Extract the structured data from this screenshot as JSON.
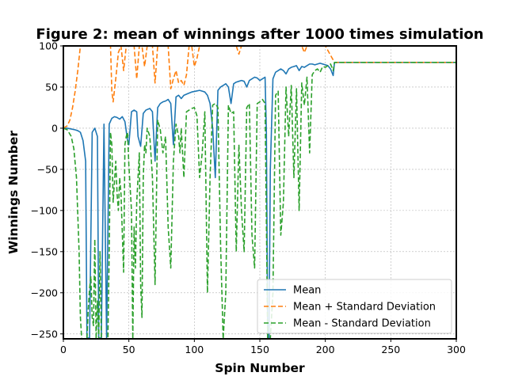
{
  "chart_data": {
    "type": "line",
    "title": "Figure 2: mean of winnings after 1000 times simulation",
    "xlabel": "Spin Number",
    "ylabel": "Winnings Number",
    "xlim": [
      0,
      300
    ],
    "ylim": [
      -256,
      100
    ],
    "xticks": [
      0,
      50,
      100,
      150,
      200,
      250,
      300
    ],
    "yticks": [
      100,
      50,
      0,
      -50,
      -100,
      -150,
      -200,
      -250
    ],
    "ytick_labels": [
      "100",
      "50",
      "0",
      "−50",
      "−100",
      "−150",
      "−200",
      "−250"
    ],
    "grid": true,
    "legend_position": "lower-right",
    "series": [
      {
        "name": "Mean",
        "color": "#1f77b4",
        "dash": "solid",
        "x": [
          0,
          3,
          6,
          9,
          11,
          13,
          15,
          17,
          18,
          20,
          22,
          24,
          26,
          27,
          29,
          31,
          33,
          35,
          37,
          39,
          41,
          43,
          45,
          47,
          49,
          50,
          52,
          54,
          56,
          57,
          59,
          61,
          63,
          66,
          68,
          70,
          72,
          74,
          76,
          78,
          80,
          82,
          84,
          86,
          88,
          90,
          92,
          95,
          98,
          101,
          104,
          106,
          108,
          110,
          112,
          114,
          116,
          118,
          120,
          122,
          124,
          126,
          128,
          130,
          132,
          134,
          136,
          138,
          140,
          142,
          144,
          146,
          148,
          150,
          152,
          154,
          155,
          156,
          157,
          158,
          160,
          162,
          164,
          166,
          168,
          170,
          172,
          174,
          176,
          178,
          180,
          182,
          184,
          186,
          188,
          190,
          192,
          194,
          196,
          198,
          200,
          202,
          204,
          205,
          206,
          207,
          210,
          220,
          240,
          260,
          280,
          300
        ],
        "y": [
          0,
          0,
          -1,
          -2,
          -3,
          -5,
          -15,
          -40,
          -255,
          -255,
          -5,
          0,
          -10,
          -255,
          -255,
          5,
          -255,
          5,
          12,
          14,
          13,
          11,
          14,
          8,
          -15,
          -20,
          20,
          22,
          20,
          -10,
          -22,
          18,
          22,
          24,
          20,
          -40,
          25,
          30,
          32,
          33,
          35,
          30,
          -20,
          38,
          40,
          36,
          40,
          42,
          44,
          45,
          46,
          45,
          44,
          40,
          30,
          0,
          -60,
          46,
          50,
          52,
          54,
          50,
          30,
          54,
          56,
          57,
          58,
          57,
          50,
          58,
          60,
          62,
          61,
          58,
          60,
          62,
          -5,
          -255,
          -255,
          -50,
          60,
          68,
          70,
          72,
          70,
          66,
          72,
          74,
          75,
          76,
          70,
          75,
          74,
          76,
          78,
          78,
          77,
          78,
          79,
          78,
          77,
          76,
          72,
          68,
          64,
          80,
          80,
          80,
          80,
          80,
          80,
          80
        ]
      },
      {
        "name": "Mean + Standard Deviation",
        "color": "#ff7f0e",
        "dash": "dashed",
        "x": [
          0,
          3,
          5,
          7,
          9,
          11,
          12,
          13,
          14,
          15,
          20,
          30,
          34,
          36,
          37,
          38,
          40,
          42,
          44,
          46,
          48,
          50,
          52,
          54,
          56,
          58,
          60,
          62,
          64,
          66,
          68,
          70,
          72,
          74,
          76,
          78,
          80,
          82,
          84,
          86,
          88,
          90,
          92,
          94,
          96,
          98,
          100,
          102,
          104,
          106,
          108,
          110,
          112,
          116,
          120,
          124,
          128,
          130,
          132,
          134,
          136,
          138,
          140,
          142,
          144,
          146,
          148,
          150,
          160,
          170,
          180,
          182,
          184,
          186,
          188,
          190,
          195,
          200,
          207,
          210,
          240,
          270,
          300
        ],
        "y": [
          0,
          3,
          10,
          25,
          45,
          70,
          85,
          100,
          100,
          100,
          100,
          100,
          100,
          100,
          45,
          32,
          60,
          92,
          100,
          70,
          100,
          100,
          100,
          100,
          60,
          100,
          100,
          75,
          100,
          100,
          100,
          55,
          100,
          100,
          100,
          100,
          100,
          48,
          60,
          70,
          55,
          58,
          52,
          65,
          100,
          100,
          75,
          85,
          100,
          100,
          100,
          100,
          100,
          100,
          100,
          100,
          100,
          100,
          100,
          90,
          100,
          100,
          100,
          100,
          100,
          100,
          100,
          100,
          100,
          100,
          100,
          100,
          92,
          100,
          100,
          100,
          100,
          100,
          80,
          80,
          80,
          80,
          80
        ]
      },
      {
        "name": "Mean - Standard Deviation",
        "color": "#2ca02c",
        "dash": "dashed",
        "x": [
          0,
          3,
          6,
          8,
          10,
          12,
          13,
          14,
          18,
          19,
          20,
          21,
          22,
          23,
          24,
          25,
          26,
          27,
          28,
          29,
          30,
          32,
          34,
          35,
          36,
          37,
          38,
          40,
          41,
          42,
          43,
          44,
          46,
          47,
          48,
          49,
          50,
          52,
          53,
          54,
          55,
          56,
          58,
          59,
          60,
          61,
          62,
          63,
          64,
          66,
          68,
          70,
          72,
          74,
          76,
          78,
          80,
          82,
          84,
          86,
          88,
          89,
          90,
          92,
          94,
          96,
          98,
          100,
          102,
          104,
          106,
          108,
          110,
          112,
          114,
          116,
          118,
          120,
          122,
          124,
          126,
          128,
          130,
          132,
          134,
          136,
          138,
          140,
          142,
          144,
          146,
          148,
          150,
          152,
          154,
          156,
          158,
          160,
          162,
          164,
          166,
          168,
          170,
          172,
          174,
          176,
          178,
          180,
          182,
          184,
          186,
          188,
          190,
          192,
          194,
          196,
          198,
          200,
          202,
          204,
          206,
          207,
          210,
          240,
          270,
          300
        ],
        "y": [
          0,
          -2,
          -10,
          -25,
          -60,
          -150,
          -230,
          -256,
          -256,
          -220,
          -195,
          -180,
          -230,
          -240,
          -135,
          -256,
          -210,
          -256,
          -150,
          -256,
          -256,
          -256,
          -256,
          -150,
          -5,
          -20,
          -90,
          -40,
          -80,
          -100,
          -60,
          -80,
          -175,
          -20,
          -10,
          -5,
          -45,
          -100,
          -256,
          -120,
          -170,
          -90,
          -30,
          -190,
          -230,
          -60,
          -20,
          -30,
          0,
          -10,
          -60,
          -190,
          10,
          -2,
          -30,
          -10,
          -120,
          -170,
          -40,
          5,
          -10,
          -30,
          0,
          -60,
          20,
          22,
          24,
          25,
          15,
          -60,
          -30,
          20,
          -200,
          -60,
          28,
          30,
          25,
          -140,
          -256,
          -200,
          28,
          18,
          20,
          -150,
          -20,
          -100,
          -150,
          25,
          30,
          -130,
          -170,
          30,
          32,
          35,
          30,
          -256,
          -256,
          -200,
          40,
          45,
          -130,
          -90,
          50,
          -10,
          52,
          -60,
          48,
          -100,
          55,
          28,
          62,
          -30,
          65,
          70,
          72,
          68,
          75,
          74,
          76,
          78,
          70,
          80,
          80,
          80,
          80,
          80
        ]
      }
    ]
  }
}
